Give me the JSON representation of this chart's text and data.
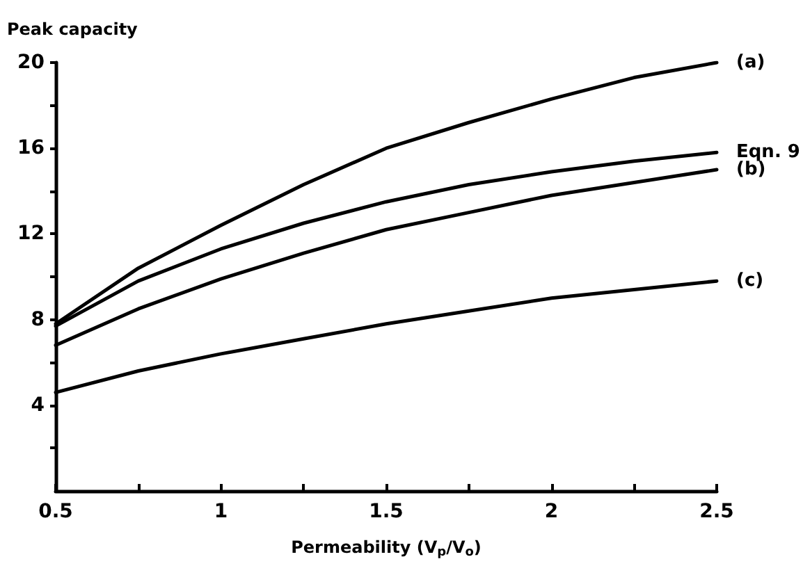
{
  "chart_data": {
    "type": "line",
    "ylabel": "Peak capacity",
    "xlabel": "Permeability (V$_{p}$/V$_{o}$)",
    "xlim": [
      0.5,
      2.5
    ],
    "xticks": [
      0.5,
      1,
      1.5,
      2,
      2.5,
      {
        "value": 0.75,
        "label": null
      },
      {
        "value": 1.25,
        "label": null
      },
      {
        "value": 1.75,
        "label": null
      },
      {
        "value": 2.25,
        "label": null
      }
    ],
    "ylim": [
      0,
      20
    ],
    "yticks": [
      4,
      8,
      12,
      16,
      20,
      {
        "value": 2,
        "label": null
      },
      {
        "value": 6,
        "label": null
      },
      {
        "value": 10,
        "label": null
      },
      {
        "value": 14,
        "label": null
      },
      {
        "value": 18,
        "label": null
      }
    ],
    "grid": false,
    "legend": false,
    "marker": "none",
    "line_style": "solid",
    "x": [
      0.5,
      0.75,
      1,
      1.25,
      1.5,
      1.75,
      2,
      2.25,
      2.5
    ],
    "series": [
      {
        "name": "(a)",
        "color": "#000000",
        "values": [
          7.8,
          10.4,
          12.4,
          14.3,
          16.0,
          17.2,
          18.3,
          19.3,
          20.0
        ]
      },
      {
        "name": "Eqn. 9",
        "color": "#000000",
        "values": [
          7.7,
          9.8,
          11.3,
          12.5,
          13.5,
          14.3,
          14.9,
          15.4,
          15.8
        ]
      },
      {
        "name": "(b)",
        "color": "#000000",
        "values": [
          6.8,
          8.5,
          9.9,
          11.1,
          12.2,
          13.0,
          13.8,
          14.4,
          15.0
        ]
      },
      {
        "name": "(c)",
        "color": "#000000",
        "values": [
          4.6,
          5.6,
          6.4,
          7.1,
          7.8,
          8.4,
          9.0,
          9.4,
          9.8
        ]
      }
    ]
  }
}
